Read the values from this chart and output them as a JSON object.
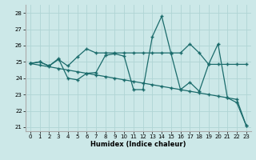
{
  "xlabel": "Humidex (Indice chaleur)",
  "background_color": "#cce8e8",
  "grid_color": "#b0d4d4",
  "line_color": "#1a6b6b",
  "xlim": [
    -0.5,
    23.5
  ],
  "ylim": [
    20.75,
    28.5
  ],
  "yticks": [
    21,
    22,
    23,
    24,
    25,
    26,
    27,
    28
  ],
  "xticks": [
    0,
    1,
    2,
    3,
    4,
    5,
    6,
    7,
    8,
    9,
    10,
    11,
    12,
    13,
    14,
    15,
    16,
    17,
    18,
    19,
    20,
    21,
    22,
    23
  ],
  "line1_x": [
    0,
    1,
    2,
    3,
    4,
    5,
    6,
    7,
    8,
    9,
    10,
    11,
    12,
    13,
    14,
    15,
    16,
    17,
    18,
    19,
    20,
    21,
    22,
    23
  ],
  "line1_y": [
    24.9,
    25.0,
    24.75,
    25.2,
    24.0,
    23.9,
    24.3,
    24.35,
    25.4,
    25.5,
    25.35,
    23.3,
    23.3,
    26.55,
    27.8,
    25.5,
    23.3,
    23.75,
    23.2,
    24.85,
    26.1,
    22.8,
    22.5,
    21.1
  ],
  "line2_x": [
    0,
    1,
    2,
    3,
    4,
    5,
    6,
    7,
    8,
    9,
    10,
    11,
    12,
    13,
    14,
    15,
    16,
    17,
    18,
    19,
    20,
    21,
    22,
    23
  ],
  "line2_y": [
    24.9,
    25.0,
    24.75,
    25.15,
    24.75,
    25.3,
    25.8,
    25.55,
    25.55,
    25.55,
    25.55,
    25.55,
    25.55,
    25.55,
    25.55,
    25.55,
    25.55,
    26.1,
    25.55,
    24.85,
    24.85,
    24.85,
    24.85,
    24.85
  ],
  "line3_x": [
    0,
    1,
    2,
    3,
    4,
    5,
    6,
    7,
    8,
    9,
    10,
    11,
    12,
    13,
    14,
    15,
    16,
    17,
    18,
    19,
    20,
    21,
    22,
    23
  ],
  "line3_y": [
    24.9,
    24.8,
    24.7,
    24.6,
    24.5,
    24.4,
    24.3,
    24.2,
    24.1,
    24.0,
    23.9,
    23.8,
    23.7,
    23.6,
    23.5,
    23.4,
    23.3,
    23.2,
    23.1,
    23.0,
    22.9,
    22.8,
    22.7,
    21.1
  ]
}
